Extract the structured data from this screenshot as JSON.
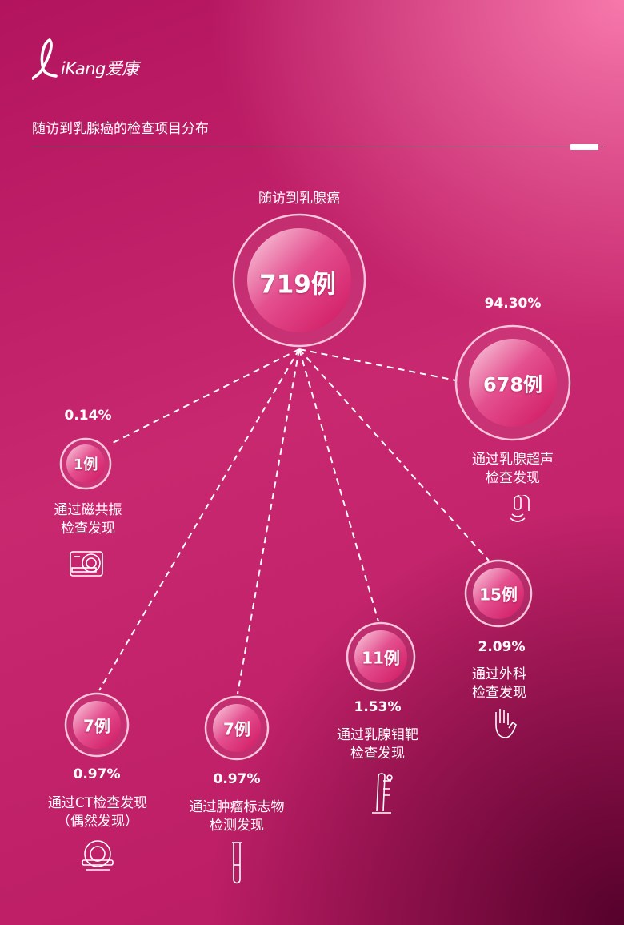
{
  "brand": {
    "logo_text": "iKang爱康"
  },
  "header": {
    "title": "随访到乳腺癌的检查项目分布"
  },
  "center": {
    "label": "随访到乳腺癌",
    "count": "719例"
  },
  "nodes": [
    {
      "id": "ultrasound",
      "percent": "94.30%",
      "count": "678例",
      "label_lines": [
        "通过乳腺超声",
        "检查发现"
      ],
      "icon": "ultrasound-probe-icon"
    },
    {
      "id": "mri",
      "percent": "0.14%",
      "count": "1例",
      "label_lines": [
        "通过磁共振",
        "检查发现"
      ],
      "icon": "mri-scanner-icon"
    },
    {
      "id": "surgery",
      "percent": "2.09%",
      "count": "15例",
      "label_lines": [
        "通过外科",
        "检查发现"
      ],
      "icon": "hand-icon"
    },
    {
      "id": "mammography",
      "percent": "1.53%",
      "count": "11例",
      "label_lines": [
        "通过乳腺钼靶",
        "检查发现"
      ],
      "icon": "mammography-machine-icon"
    },
    {
      "id": "ct",
      "percent": "0.97%",
      "count": "7例",
      "label_lines": [
        "通过CT检查发现",
        "（偶然发现）"
      ],
      "icon": "ct-scanner-icon"
    },
    {
      "id": "tumor-marker",
      "percent": "0.97%",
      "count": "7例",
      "label_lines": [
        "通过肿瘤标志物",
        "检测发现"
      ],
      "icon": "test-tube-icon"
    }
  ],
  "colors": {
    "accent": "#d0175f",
    "ring": "#f8c6dc"
  }
}
